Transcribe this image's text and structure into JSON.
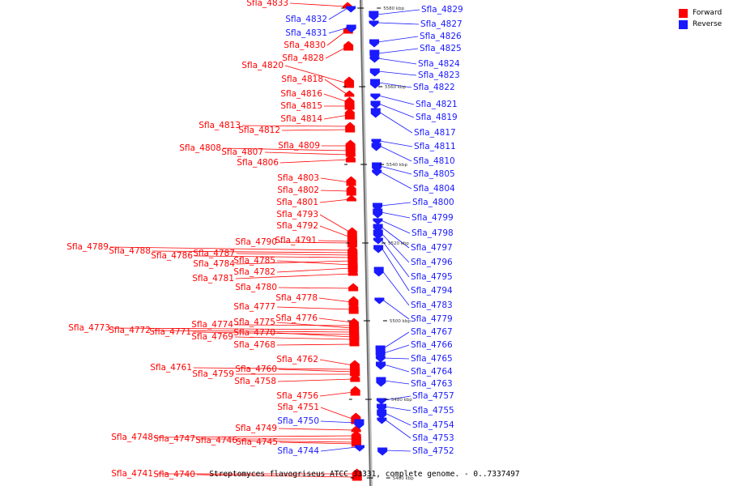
{
  "legend": {
    "forward_label": "Forward",
    "reverse_label": "Reverse",
    "forward_color": "#ff0000",
    "reverse_color": "#1a1aff"
  },
  "caption": "Streptomyces flavogriseus ATCC 33331, complete genome. - 0..7337497",
  "ticks": [
    "5580 kbp",
    "5560 kbp",
    "5540 kbp",
    "5520 kbp",
    "5500 kbp",
    "5480 kbp",
    "5460 kbp"
  ],
  "forward_genes": [
    "Sfla_4833",
    "Sfla_4830",
    "Sfla_4828",
    "Sfla_4820",
    "Sfla_4818",
    "Sfla_4816",
    "Sfla_4815",
    "Sfla_4814",
    "Sfla_4813",
    "Sfla_4812",
    "Sfla_4809",
    "Sfla_4808",
    "Sfla_4807",
    "Sfla_4806",
    "Sfla_4803",
    "Sfla_4802",
    "Sfla_4801",
    "Sfla_4793",
    "Sfla_4792",
    "Sfla_4790",
    "Sfla_4791",
    "Sfla_4789",
    "Sfla_4788",
    "Sfla_4787",
    "Sfla_4786",
    "Sfla_4784",
    "Sfla_4785",
    "Sfla_4782",
    "Sfla_4781",
    "Sfla_4780",
    "Sfla_4778",
    "Sfla_4777",
    "Sfla_4776",
    "Sfla_4774",
    "Sfla_4775",
    "Sfla_4773",
    "Sfla_4772",
    "Sfla_4771",
    "Sfla_4770",
    "Sfla_4769",
    "Sfla_4768",
    "Sfla_4762",
    "Sfla_4761",
    "Sfla_4760",
    "Sfla_4759",
    "Sfla_4758",
    "Sfla_4756",
    "Sfla_4751",
    "Sfla_4749",
    "Sfla_4748",
    "Sfla_4747",
    "Sfla_4746",
    "Sfla_4745",
    "Sfla_4741",
    "Sfla_4740"
  ],
  "reverse_genes": [
    "Sfla_4832",
    "Sfla_4831",
    "Sfla_4829",
    "Sfla_4827",
    "Sfla_4826",
    "Sfla_4825",
    "Sfla_4824",
    "Sfla_4823",
    "Sfla_4822",
    "Sfla_4821",
    "Sfla_4819",
    "Sfla_4817",
    "Sfla_4811",
    "Sfla_4810",
    "Sfla_4805",
    "Sfla_4804",
    "Sfla_4800",
    "Sfla_4799",
    "Sfla_4798",
    "Sfla_4797",
    "Sfla_4796",
    "Sfla_4795",
    "Sfla_4794",
    "Sfla_4783",
    "Sfla_4779",
    "Sfla_4767",
    "Sfla_4766",
    "Sfla_4765",
    "Sfla_4764",
    "Sfla_4763",
    "Sfla_4757",
    "Sfla_4755",
    "Sfla_4754",
    "Sfla_4753",
    "Sfla_4752",
    "Sfla_4750",
    "Sfla_4744"
  ]
}
